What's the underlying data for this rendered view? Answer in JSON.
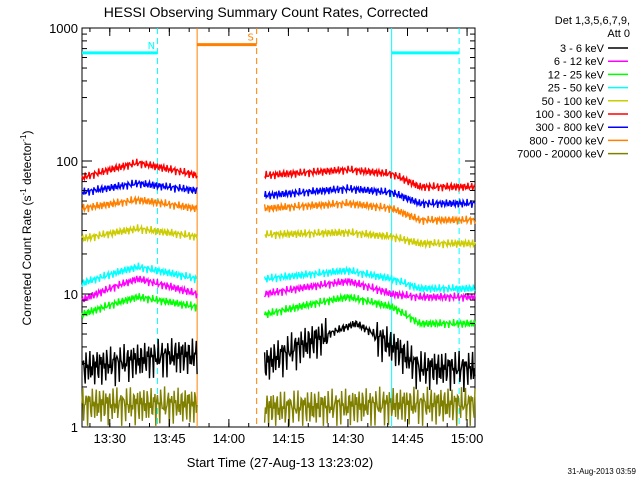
{
  "chart_data": {
    "type": "line",
    "title": "HESSI Observing Summary Count Rates, Corrected",
    "xlabel": "Start Time (27-Aug-13 13:23:02)",
    "ylabel_main": "Corrected Count Rate (s",
    "ylabel_sup1": "-1",
    "ylabel_mid": " detector",
    "ylabel_sup2": "-1",
    "ylabel_end": ")",
    "yscale": "log",
    "ylim": [
      1,
      1000
    ],
    "xlim": [
      "13:23",
      "15:02"
    ],
    "x_ticks": [
      "13:30",
      "13:45",
      "14:00",
      "14:15",
      "14:30",
      "14:45",
      "15:00"
    ],
    "y_ticks": [
      "1",
      "10",
      "100",
      "1000"
    ],
    "timestamp": "31-Aug-2013 03:59",
    "legend": {
      "header1": "Det 1,3,5,6,7,9,",
      "header2": "Att 0",
      "position": "right"
    },
    "series": [
      {
        "name": "3 - 6 keV",
        "color": "#000000",
        "x": [
          "13:23",
          "13:45",
          "13:52",
          "14:09",
          "14:25",
          "14:32",
          "14:39",
          "14:48",
          "15:00"
        ],
        "values": [
          2.8,
          3.5,
          3.5,
          3.0,
          5.0,
          6.0,
          4.5,
          2.8,
          2.8
        ]
      },
      {
        "name": "6 - 12 keV",
        "color": "#ff00ff",
        "x": [
          "13:23",
          "13:37",
          "13:52",
          "14:09",
          "14:30",
          "14:41",
          "14:48",
          "15:00"
        ],
        "values": [
          9.0,
          13.0,
          10.0,
          10.0,
          12.5,
          10.0,
          9.5,
          9.5
        ]
      },
      {
        "name": "12 - 25 keV",
        "color": "#00ff00",
        "x": [
          "13:23",
          "13:37",
          "13:52",
          "14:09",
          "14:30",
          "14:41",
          "14:48",
          "15:00"
        ],
        "values": [
          7.0,
          9.5,
          8.0,
          7.0,
          9.5,
          8.0,
          6.0,
          6.0
        ]
      },
      {
        "name": "25 - 50 keV",
        "color": "#00ffff",
        "x": [
          "13:23",
          "13:37",
          "13:52",
          "14:09",
          "14:30",
          "14:41",
          "14:48",
          "15:00"
        ],
        "values": [
          12.0,
          16.0,
          13.0,
          13.0,
          15.0,
          13.0,
          11.0,
          11.0
        ]
      },
      {
        "name": "50 - 100 keV",
        "color": "#cccc00",
        "x": [
          "13:23",
          "13:37",
          "13:52",
          "14:09",
          "14:30",
          "14:41",
          "14:48",
          "15:00"
        ],
        "values": [
          26.0,
          31.0,
          27.0,
          28.0,
          29.0,
          27.0,
          24.0,
          24.0
        ]
      },
      {
        "name": "100 - 300 keV",
        "color": "#ff0000",
        "x": [
          "13:23",
          "13:37",
          "13:52",
          "14:09",
          "14:30",
          "14:41",
          "14:48",
          "15:00"
        ],
        "values": [
          75.0,
          97.0,
          78.0,
          78.0,
          86.0,
          80.0,
          64.0,
          64.0
        ]
      },
      {
        "name": "300 - 800 keV",
        "color": "#0000ff",
        "x": [
          "13:23",
          "13:37",
          "13:52",
          "14:09",
          "14:30",
          "14:41",
          "14:48",
          "15:00"
        ],
        "values": [
          58.0,
          68.0,
          60.0,
          55.0,
          62.0,
          58.0,
          48.0,
          48.0
        ]
      },
      {
        "name": "800 - 7000 keV",
        "color": "#ff8000",
        "x": [
          "13:23",
          "13:37",
          "13:52",
          "14:09",
          "14:30",
          "14:41",
          "14:48",
          "15:00"
        ],
        "values": [
          44.0,
          51.0,
          44.0,
          44.0,
          48.0,
          44.0,
          36.0,
          36.0
        ]
      },
      {
        "name": "7000 - 20000 keV",
        "color": "#808000",
        "x": [
          "13:23",
          "13:52",
          "14:09",
          "14:41",
          "14:48",
          "15:00"
        ],
        "values": [
          1.5,
          1.5,
          1.4,
          1.5,
          1.5,
          1.5
        ]
      }
    ],
    "flags": [
      {
        "label": "N",
        "color": "#00ffff",
        "ranges": [
          [
            "13:23",
            "13:42"
          ],
          [
            "14:41",
            "14:58"
          ]
        ],
        "level": 650
      },
      {
        "label": "S",
        "color": "#ff8000",
        "ranges": [
          [
            "13:52",
            "14:07"
          ]
        ],
        "level": 750
      }
    ],
    "event_lines": [
      {
        "x": "13:42",
        "color": "#00ffff",
        "dashed": true
      },
      {
        "x": "13:52",
        "color": "#ff8000",
        "dashed": false
      },
      {
        "x": "14:07",
        "color": "#ff8000",
        "dashed": true
      },
      {
        "x": "14:41",
        "color": "#00ffff",
        "dashed": false
      },
      {
        "x": "14:58",
        "color": "#00ffff",
        "dashed": true
      }
    ]
  }
}
